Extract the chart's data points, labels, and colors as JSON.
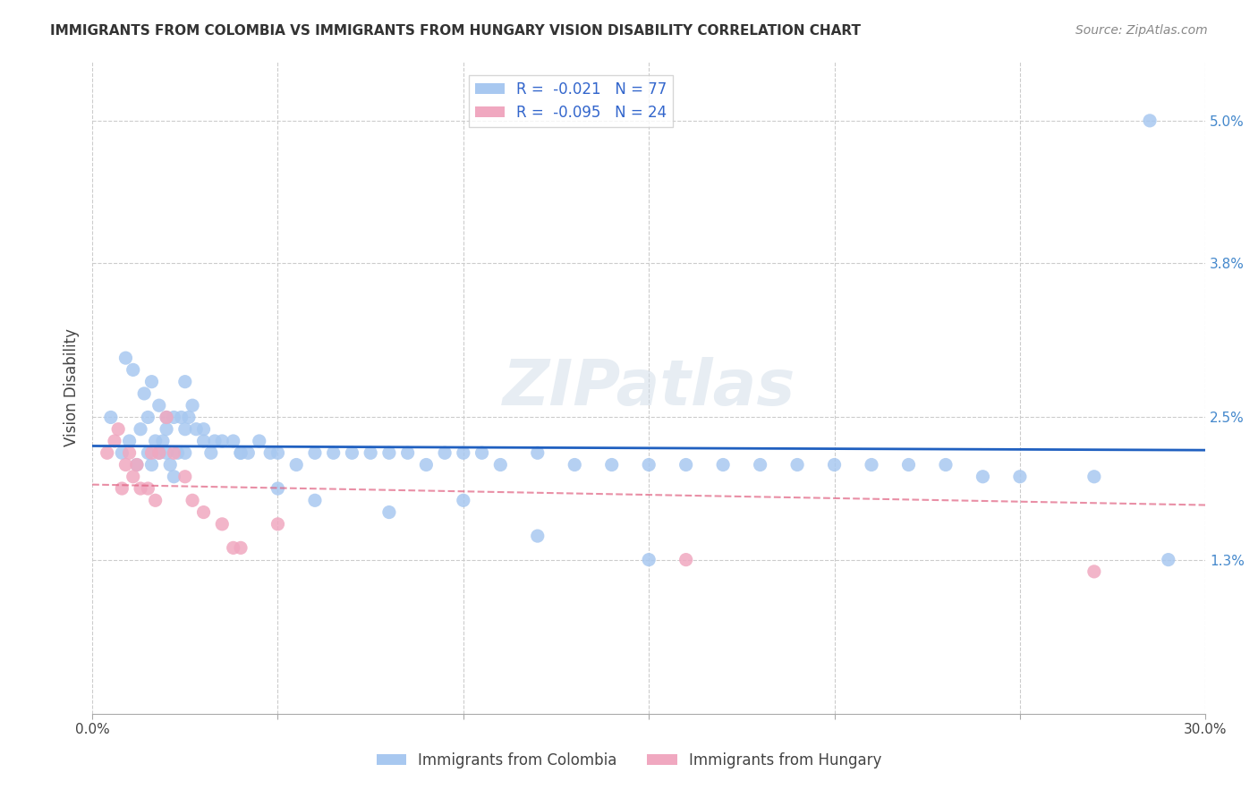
{
  "title": "IMMIGRANTS FROM COLOMBIA VS IMMIGRANTS FROM HUNGARY VISION DISABILITY CORRELATION CHART",
  "source": "Source: ZipAtlas.com",
  "xlabel_colombia": "Immigrants from Colombia",
  "xlabel_hungary": "Immigrants from Hungary",
  "ylabel": "Vision Disability",
  "xlim": [
    0.0,
    0.3
  ],
  "ylim": [
    0.0,
    0.055
  ],
  "xticks": [
    0.0,
    0.05,
    0.1,
    0.15,
    0.2,
    0.25,
    0.3
  ],
  "yticks_right": [
    0.013,
    0.025,
    0.038,
    0.05
  ],
  "yticklabels_right": [
    "1.3%",
    "2.5%",
    "3.8%",
    "5.0%"
  ],
  "R_colombia": -0.021,
  "N_colombia": 77,
  "R_hungary": -0.095,
  "N_hungary": 24,
  "color_colombia": "#a8c8f0",
  "color_hungary": "#f0a8c0",
  "line_color_colombia": "#2060c0",
  "line_color_hungary": "#e06080",
  "colombia_x": [
    0.005,
    0.008,
    0.01,
    0.012,
    0.013,
    0.015,
    0.015,
    0.016,
    0.017,
    0.018,
    0.019,
    0.02,
    0.02,
    0.021,
    0.022,
    0.022,
    0.023,
    0.024,
    0.025,
    0.025,
    0.026,
    0.027,
    0.028,
    0.03,
    0.032,
    0.033,
    0.035,
    0.038,
    0.04,
    0.042,
    0.045,
    0.048,
    0.05,
    0.055,
    0.06,
    0.065,
    0.07,
    0.075,
    0.08,
    0.085,
    0.09,
    0.095,
    0.1,
    0.105,
    0.11,
    0.12,
    0.13,
    0.14,
    0.15,
    0.16,
    0.17,
    0.18,
    0.19,
    0.2,
    0.21,
    0.22,
    0.23,
    0.24,
    0.25,
    0.27,
    0.009,
    0.011,
    0.014,
    0.016,
    0.018,
    0.02,
    0.025,
    0.03,
    0.04,
    0.05,
    0.06,
    0.08,
    0.1,
    0.12,
    0.15,
    0.29,
    0.285
  ],
  "colombia_y": [
    0.025,
    0.022,
    0.023,
    0.021,
    0.024,
    0.025,
    0.022,
    0.021,
    0.023,
    0.022,
    0.023,
    0.024,
    0.022,
    0.021,
    0.02,
    0.025,
    0.022,
    0.025,
    0.022,
    0.028,
    0.025,
    0.026,
    0.024,
    0.023,
    0.022,
    0.023,
    0.023,
    0.023,
    0.022,
    0.022,
    0.023,
    0.022,
    0.022,
    0.021,
    0.022,
    0.022,
    0.022,
    0.022,
    0.022,
    0.022,
    0.021,
    0.022,
    0.022,
    0.022,
    0.021,
    0.022,
    0.021,
    0.021,
    0.021,
    0.021,
    0.021,
    0.021,
    0.021,
    0.021,
    0.021,
    0.021,
    0.021,
    0.02,
    0.02,
    0.02,
    0.03,
    0.029,
    0.027,
    0.028,
    0.026,
    0.025,
    0.024,
    0.024,
    0.022,
    0.019,
    0.018,
    0.017,
    0.018,
    0.015,
    0.013,
    0.013,
    0.05
  ],
  "hungary_x": [
    0.004,
    0.006,
    0.007,
    0.008,
    0.009,
    0.01,
    0.011,
    0.012,
    0.013,
    0.015,
    0.016,
    0.017,
    0.018,
    0.02,
    0.022,
    0.025,
    0.027,
    0.03,
    0.035,
    0.038,
    0.04,
    0.05,
    0.27,
    0.16
  ],
  "hungary_y": [
    0.022,
    0.023,
    0.024,
    0.019,
    0.021,
    0.022,
    0.02,
    0.021,
    0.019,
    0.019,
    0.022,
    0.018,
    0.022,
    0.025,
    0.022,
    0.02,
    0.018,
    0.017,
    0.016,
    0.014,
    0.014,
    0.016,
    0.012,
    0.013
  ],
  "watermark": "ZIPatlas",
  "background_color": "#ffffff",
  "grid_color": "#cccccc"
}
